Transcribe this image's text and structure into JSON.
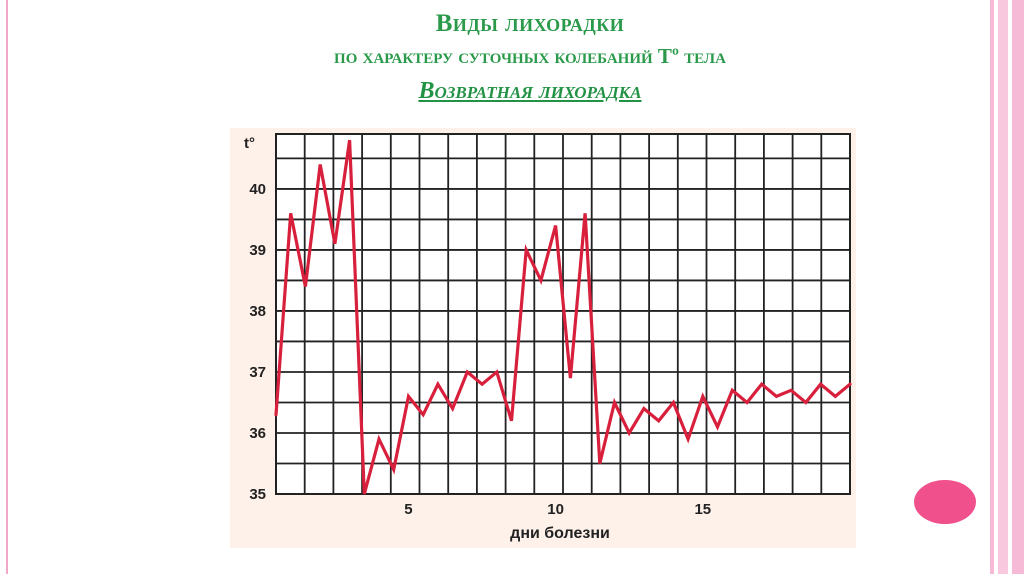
{
  "slide": {
    "title_line1": "Виды лихорадки",
    "title_line2": "по характеру суточных колебаний  Tº тела",
    "title_line3": "Возвратная лихорадка",
    "accent_color": "#2a9a4a",
    "line_color": "#d8203c"
  },
  "chart_data": {
    "type": "line",
    "title": "",
    "xlabel": "дни болезни",
    "ylabel": "t°",
    "xlim": [
      0.5,
      20
    ],
    "ylim": [
      35,
      40.9
    ],
    "grid": true,
    "x_ticks": [
      5,
      10,
      15
    ],
    "x_tick_labels": [
      "5",
      "10",
      "15"
    ],
    "y_ticks": [
      35,
      36,
      37,
      38,
      39,
      40
    ],
    "y_tick_labels": [
      "35",
      "36",
      "37",
      "38",
      "39",
      "40"
    ],
    "series": [
      {
        "name": "",
        "x": [
          0.5,
          1,
          1.5,
          2,
          2.5,
          3,
          3.5,
          4,
          4.5,
          5,
          5.5,
          6,
          6.5,
          7,
          7.5,
          8,
          8.5,
          9,
          9.5,
          10,
          10.5,
          11,
          11.5,
          12,
          12.5,
          13,
          13.5,
          14,
          14.5,
          15,
          15.5,
          16,
          16.5,
          17,
          17.5,
          18,
          18.5,
          19,
          19.5,
          20
        ],
        "y": [
          36.3,
          39.6,
          38.4,
          40.4,
          39.1,
          40.8,
          35.0,
          35.9,
          35.4,
          36.6,
          36.3,
          36.8,
          36.4,
          37.0,
          36.8,
          37.0,
          36.2,
          39.0,
          38.5,
          39.4,
          36.9,
          39.6,
          35.5,
          36.5,
          36.0,
          36.4,
          36.2,
          36.5,
          35.9,
          36.6,
          36.1,
          36.7,
          36.5,
          36.8,
          36.6,
          36.7,
          36.5,
          36.8,
          36.6,
          36.8
        ]
      }
    ]
  }
}
